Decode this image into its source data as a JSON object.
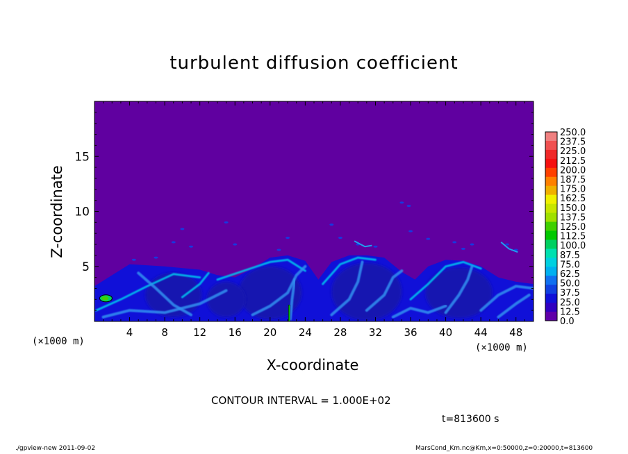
{
  "chart_data": {
    "type": "heatmap",
    "title": "turbulent diffusion coefficient",
    "xlabel": "X-coordinate",
    "ylabel": "Z-coordinate",
    "x_unit_left": "(×1000 m)",
    "x_unit_right": "(×1000 m)",
    "xlim": [
      0,
      50
    ],
    "ylim": [
      0,
      20
    ],
    "x_ticks": [
      "4",
      "8",
      "12",
      "16",
      "20",
      "24",
      "28",
      "32",
      "36",
      "40",
      "44",
      "48"
    ],
    "y_ticks": [
      "5",
      "10",
      "15"
    ],
    "x_tick_values": [
      4,
      8,
      12,
      16,
      20,
      24,
      28,
      32,
      36,
      40,
      44,
      48
    ],
    "y_tick_values": [
      5,
      10,
      15
    ],
    "colorbar": {
      "levels": [
        "250.0",
        "237.5",
        "225.0",
        "212.5",
        "200.0",
        "187.5",
        "175.0",
        "162.5",
        "150.0",
        "137.5",
        "125.0",
        "112.5",
        "100.0",
        "87.5",
        "75.0",
        "62.5",
        "50.0",
        "37.5",
        "25.0",
        "12.5",
        "0.0"
      ],
      "colors": [
        "#f08080",
        "#f05050",
        "#f02828",
        "#f51010",
        "#ff4000",
        "#ff8000",
        "#f0b000",
        "#f0f000",
        "#c8e600",
        "#a0e000",
        "#40d000",
        "#00c800",
        "#00d060",
        "#00e0b0",
        "#00d0e0",
        "#00b0f0",
        "#1070f0",
        "#1040e0",
        "#1010d8",
        "#3000c0",
        "#6000a8"
      ]
    },
    "background_color": "#6000a0",
    "contour_interval": "CONTOUR INTERVAL = 1.000E+02",
    "time_label": "t=813600 s"
  },
  "footer": {
    "left": "./gpview-new  2011-09-02",
    "right": "MarsCond_Km.nc@Km,x=0:50000,z=0:20000,t=813600"
  }
}
